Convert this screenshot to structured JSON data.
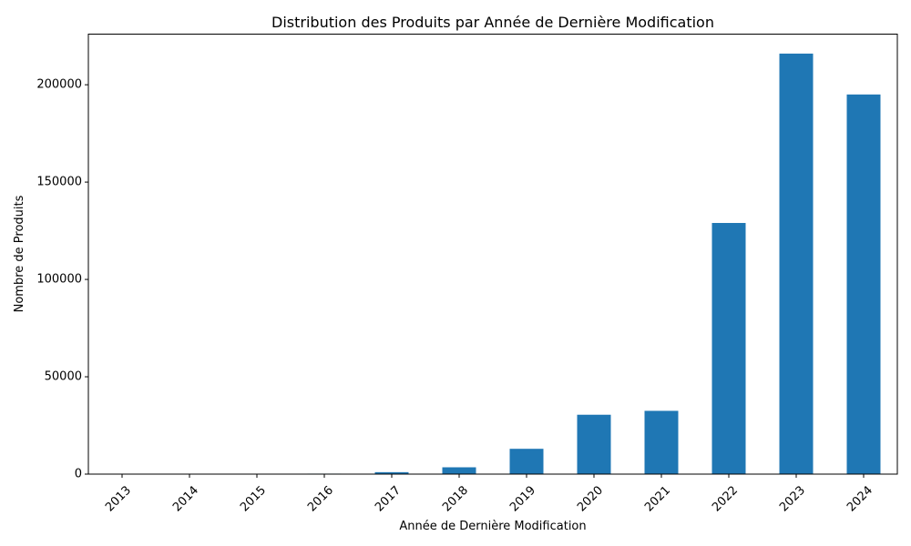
{
  "chart_data": {
    "type": "bar",
    "title": "Distribution des Produits par Année de Dernière Modification",
    "xlabel": "Année de Dernière Modification",
    "ylabel": "Nombre de Produits",
    "categories": [
      "2013",
      "2014",
      "2015",
      "2016",
      "2017",
      "2018",
      "2019",
      "2020",
      "2021",
      "2022",
      "2023",
      "2024"
    ],
    "values": [
      50,
      80,
      120,
      250,
      1000,
      3500,
      13000,
      30500,
      32500,
      129000,
      216000,
      195000
    ],
    "ylim": [
      0,
      226000
    ],
    "yticks": [
      0,
      50000,
      100000,
      150000,
      200000
    ],
    "bar_color": "#1f77b4",
    "grid": false,
    "legend": "none"
  }
}
